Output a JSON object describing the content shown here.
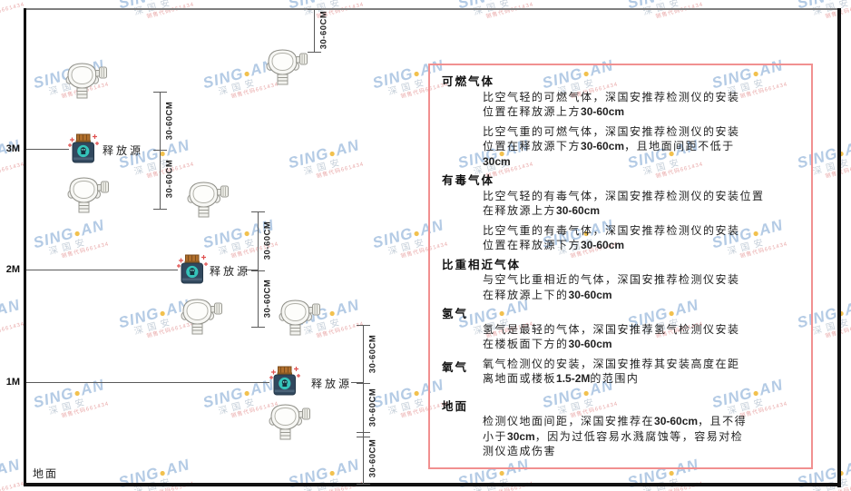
{
  "diagram": {
    "height_labels": [
      "3M",
      "2M",
      "1M"
    ],
    "ground_label": "地面",
    "source_label": "释放源",
    "dim_label": "30-60CM"
  },
  "panel": {
    "sections": [
      {
        "title": "可燃气体",
        "paragraphs": [
          [
            "比空气轻的可燃气体，深国安推荐检测仪的安装",
            "位置在释放源上方30-60cm"
          ],
          [
            "比空气重的可燃气体，深国安推荐检测仪的安装",
            "位置在释放源下方30-60cm，且地面间距不低于",
            "30cm"
          ]
        ]
      },
      {
        "title": "有毒气体",
        "paragraphs": [
          [
            "比空气轻的有毒气体，深国安推荐检测仪的安装位置",
            "在释放源上方30-60cm"
          ],
          [
            "比空气重的有毒气体，深国安推荐检测仪的安装",
            "位置在释放源下方30-60cm"
          ]
        ]
      },
      {
        "title": "比重相近气体",
        "paragraphs": [
          [
            "与空气比重相近的气体，深国安推荐检测仪安装",
            "在释放源上下的30-60cm"
          ]
        ]
      },
      {
        "title": "氢气",
        "paragraphs": [
          [
            "氢气是最轻的气体，深国安推荐氢气检测仪安装",
            "在楼板面下方的30-60cm"
          ]
        ]
      },
      {
        "title": "氧气",
        "paragraphs": [
          [
            "氧气检测仪的安装，深国安推荐其安装高度在距",
            "离地面或楼板1.5-2M的范围内"
          ]
        ]
      },
      {
        "title": "地面",
        "paragraphs": [
          [
            "检测仪地面间距，深国安推荐在30-60cm，且不得",
            "小于30cm，因为过低容易水溅腐蚀等，容易对检",
            "测仪造成伤害"
          ]
        ]
      }
    ]
  },
  "watermark": {
    "brand_left": "SING",
    "brand_dot": "●",
    "brand_right": "AN",
    "cn_text": "深国安",
    "code_text": "销售代码661434"
  },
  "colors": {
    "panel_border": "#f19090",
    "wall_black": "#111111",
    "line_grey": "#5a5a5a",
    "watermark_blue": "#b4cbe5",
    "watermark_dot_yellow": "#f2c14e",
    "source_teal": "#35c4ba",
    "source_body_navy": "#31485e",
    "source_cap_orange": "#b06f2c",
    "spark_red": "#e0504f"
  }
}
